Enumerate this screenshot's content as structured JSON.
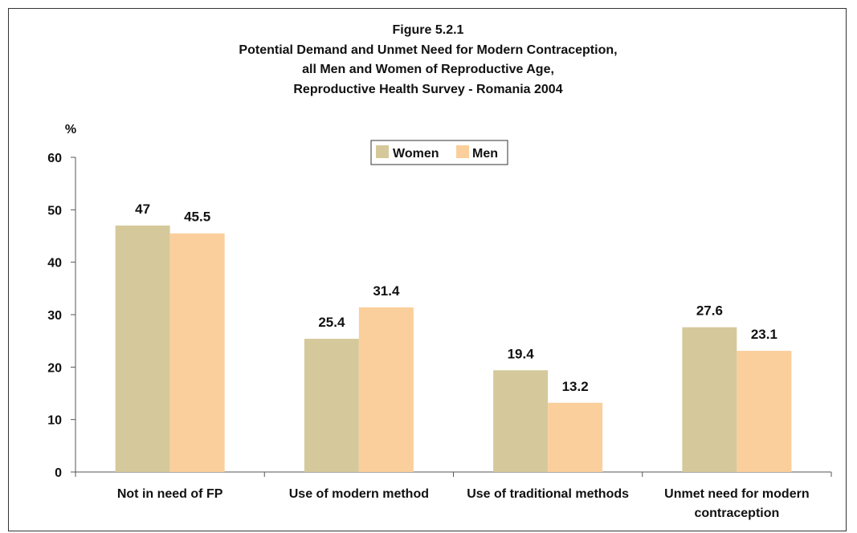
{
  "chart_data": {
    "type": "bar",
    "title_lines": [
      "Figure 5.2.1",
      "Potential Demand and Unmet Need for Modern Contraception,",
      "all Men and Women of Reproductive Age,",
      "Reproductive Health Survey - Romania 2004"
    ],
    "ylabel": "%",
    "xlabel": "",
    "ylim": [
      0,
      60
    ],
    "yticks": [
      "0",
      "10",
      "20",
      "30",
      "40",
      "50",
      "60"
    ],
    "categories": [
      [
        "Not in need of FP"
      ],
      [
        "Use of modern method"
      ],
      [
        "Use of traditional methods"
      ],
      [
        "Unmet need for modern",
        "contraception"
      ]
    ],
    "series": [
      {
        "name": "Women",
        "color": "#d5c99b",
        "values": [
          47,
          25.4,
          19.4,
          27.6
        ],
        "labels": [
          "47",
          "25.4",
          "19.4",
          "27.6"
        ]
      },
      {
        "name": "Men",
        "color": "#fbcf9b",
        "values": [
          45.5,
          31.4,
          13.2,
          23.1
        ],
        "labels": [
          "45.5",
          "31.4",
          "13.2",
          "23.1"
        ]
      }
    ],
    "legend_position": "top-center",
    "grid": false
  }
}
